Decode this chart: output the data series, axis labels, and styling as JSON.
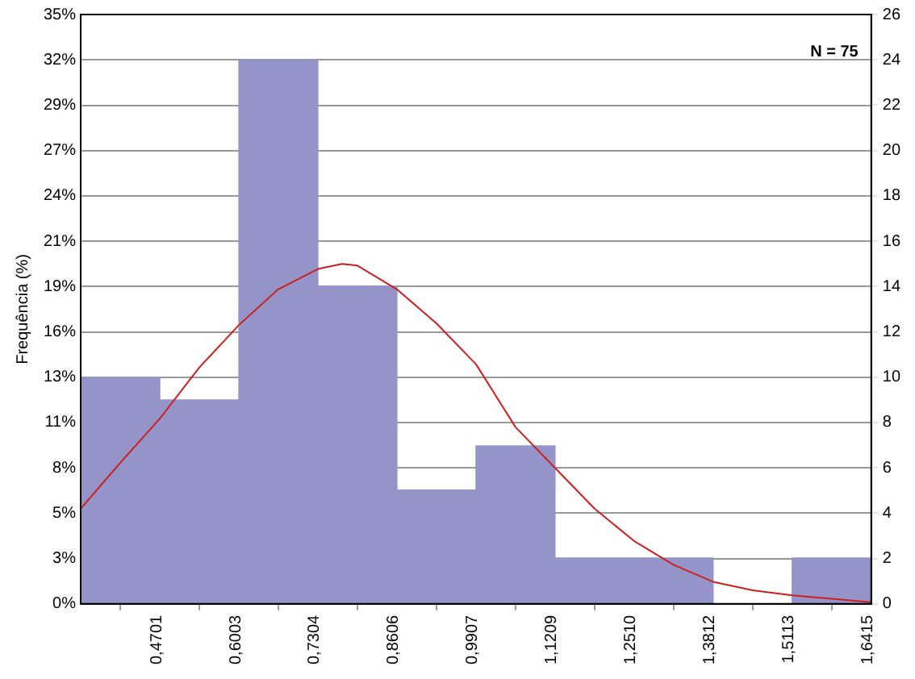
{
  "chart_data": {
    "type": "histogram",
    "ylabel": "Frequência (%)",
    "annotations": [
      "N = 75"
    ],
    "bins": [
      0.3399,
      0.4701,
      0.6003,
      0.7304,
      0.8606,
      0.9907,
      1.1209,
      1.251,
      1.3812,
      1.5113,
      1.6415
    ],
    "series": [
      {
        "color": "#9494c8",
        "values": [
          13.3,
          12,
          32,
          18.7,
          6.7,
          9.3,
          2.7,
          2.7,
          0,
          2.7
        ]
      },
      {
        "type": "line",
        "color": "#cc2020",
        "x": [
          0.3399,
          0.405,
          0.4701,
          0.535,
          0.6003,
          0.665,
          0.7304,
          0.77,
          0.7955,
          0.8606,
          0.9256,
          0.9907,
          1.0558,
          1.1209,
          1.186,
          1.251,
          1.316,
          1.3812,
          1.4463,
          1.5113,
          1.5764,
          1.6415
        ],
        "values": [
          5.6,
          8.3,
          10.9,
          13.9,
          16.4,
          18.5,
          19.7,
          20,
          19.9,
          18.5,
          16.5,
          14.1,
          10.4,
          8,
          5.6,
          3.7,
          2.3,
          1.3,
          0.8,
          0.5,
          0.3,
          0.1
        ]
      }
    ],
    "xlim": [
      0.3399,
      1.6415
    ],
    "xticks": [
      {
        "value": 0.4701,
        "label": "0,4701"
      },
      {
        "value": 0.6003,
        "label": "0,6003"
      },
      {
        "value": 0.7304,
        "label": "0,7304"
      },
      {
        "value": 0.8606,
        "label": "0,8606"
      },
      {
        "value": 0.9907,
        "label": "0,9907"
      },
      {
        "value": 1.1209,
        "label": "1,1209"
      },
      {
        "value": 1.251,
        "label": "1,2510"
      },
      {
        "value": 1.3812,
        "label": "1,3812"
      },
      {
        "value": 1.5113,
        "label": "1,5113"
      },
      {
        "value": 1.6415,
        "label": "1,6415"
      }
    ],
    "ylim": [
      0,
      34.67
    ],
    "yticks": [
      {
        "value": 0,
        "label": "0%"
      },
      {
        "value": 2.67,
        "label": "3%"
      },
      {
        "value": 5.33,
        "label": "5%"
      },
      {
        "value": 8,
        "label": "8%"
      },
      {
        "value": 10.67,
        "label": "11%"
      },
      {
        "value": 13.33,
        "label": "13%"
      },
      {
        "value": 16,
        "label": "16%"
      },
      {
        "value": 18.67,
        "label": "19%"
      },
      {
        "value": 21.33,
        "label": "21%"
      },
      {
        "value": 24,
        "label": "24%"
      },
      {
        "value": 26.67,
        "label": "27%"
      },
      {
        "value": 29.33,
        "label": "29%"
      },
      {
        "value": 32,
        "label": "32%"
      },
      {
        "value": 34.67,
        "label": "35%"
      }
    ],
    "y2lim": [
      0,
      26
    ],
    "y2ticks": [
      0,
      2,
      4,
      6,
      8,
      10,
      12,
      14,
      16,
      18,
      20,
      22,
      24,
      26
    ],
    "grid": "y",
    "legend": false
  }
}
